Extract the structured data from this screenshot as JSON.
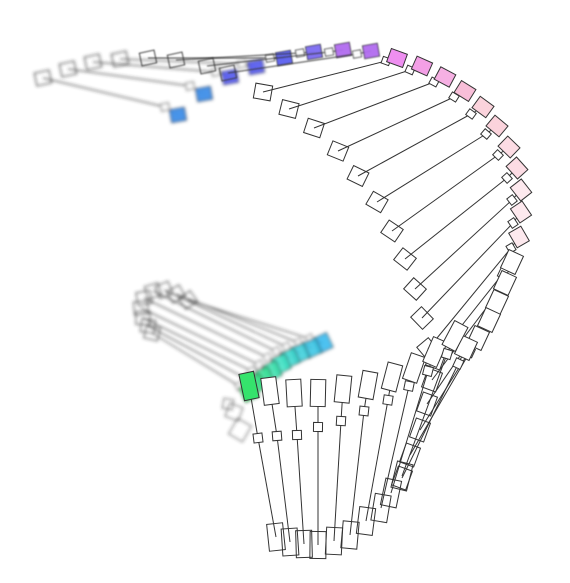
{
  "scene": {
    "background": "#ffffff",
    "stroke_color": "#333333",
    "palette": {
      "top_blue": "#3f8fe8",
      "top_indigo": "#5b5ff0",
      "top_violet": "#b16cf0",
      "top_magenta": "#ee8ff0",
      "pink_light": "#fbd3dc",
      "pink_pale": "#fde9ee",
      "cyan": "#2fb8ef",
      "teal": "#3be3c4",
      "green": "#35e36c"
    },
    "groups": [
      "top-arc-chain",
      "right-arc-chain",
      "bottom-fan-chain",
      "left-loop-chain"
    ]
  }
}
